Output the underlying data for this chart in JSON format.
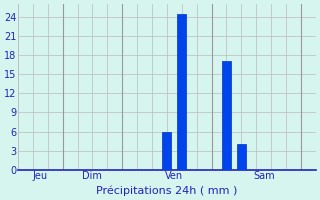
{
  "bar_positions": [
    10,
    11,
    14,
    15
  ],
  "bar_values": [
    6.0,
    24.5,
    17.0,
    4.0
  ],
  "bar_color": "#0044EE",
  "bar_edge_color": "#0033BB",
  "xlim": [
    0,
    20
  ],
  "ylim": [
    0,
    26
  ],
  "yticks": [
    0,
    3,
    6,
    9,
    12,
    15,
    18,
    21,
    24
  ],
  "xtick_labels": [
    "Jeu",
    "Dim",
    "Ven",
    "Sam"
  ],
  "xtick_positions": [
    1.5,
    5,
    10.5,
    16.5
  ],
  "vline_positions": [
    3,
    7,
    13,
    19
  ],
  "xlabel": "Précipitations 24h ( mm )",
  "background_color": "#D6F5EE",
  "grid_color": "#BBBBBB",
  "bar_width": 0.6,
  "xlabel_fontsize": 8,
  "ytick_fontsize": 7,
  "xtick_fontsize": 7,
  "label_color": "#2222BB"
}
